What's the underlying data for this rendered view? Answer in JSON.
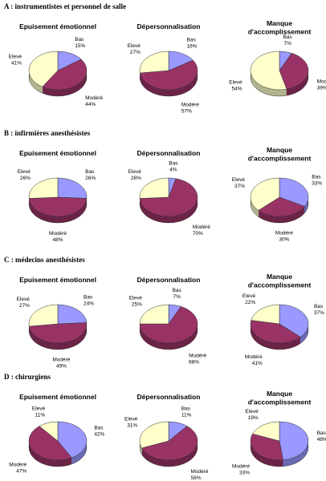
{
  "sections": [
    "A : instrumentistes et personnel de salle",
    "B : infirmières anesthésistes",
    "C : médecins anesthésistes",
    "D : chirurgiens"
  ],
  "chart_data": [
    {
      "type": "pie",
      "title": "Epuisement émotionnel",
      "categories": [
        "Bas",
        "Modéré",
        "Elevé"
      ],
      "values": [
        15,
        44,
        41
      ],
      "value_labels": [
        "15%",
        "44%",
        "41%"
      ],
      "colors": [
        "#9999ff",
        "#993366",
        "#ffffcc"
      ]
    },
    {
      "type": "pie",
      "title": "Dépersonnalisation",
      "categories": [
        "Bas",
        "Modéré",
        "Elevé"
      ],
      "values": [
        16,
        57,
        27
      ],
      "value_labels": [
        "16%",
        "57%",
        "27%"
      ],
      "colors": [
        "#9999ff",
        "#993366",
        "#ffffcc"
      ]
    },
    {
      "type": "pie",
      "title": "Manque\nd'accomplissement",
      "categories": [
        "Bas",
        "Modéré",
        "Elevé"
      ],
      "values": [
        7,
        39,
        54
      ],
      "value_labels": [
        "7%",
        "39%",
        "54%"
      ],
      "colors": [
        "#9999ff",
        "#993366",
        "#ffffcc"
      ]
    },
    {
      "type": "pie",
      "title": "Epuisement émotionnel",
      "categories": [
        "Bas",
        "Modéré",
        "Elevé"
      ],
      "values": [
        26,
        48,
        26
      ],
      "value_labels": [
        "26%",
        "48%",
        "26%"
      ],
      "colors": [
        "#9999ff",
        "#993366",
        "#ffffcc"
      ]
    },
    {
      "type": "pie",
      "title": "Dépersonnalisation",
      "categories": [
        "Bas",
        "Modéré",
        "Elevé"
      ],
      "values": [
        4,
        70,
        26
      ],
      "value_labels": [
        "4%",
        "70%",
        "26%"
      ],
      "colors": [
        "#9999ff",
        "#993366",
        "#ffffcc"
      ]
    },
    {
      "type": "pie",
      "title": "Manque\nd'accomplissement",
      "categories": [
        "Bas",
        "Modéré",
        "Elevé"
      ],
      "values": [
        33,
        30,
        37
      ],
      "value_labels": [
        "33%",
        "30%",
        "37%"
      ],
      "colors": [
        "#9999ff",
        "#993366",
        "#ffffcc"
      ]
    },
    {
      "type": "pie",
      "title": "Epuisement émotionnel",
      "categories": [
        "Bas",
        "Modéré",
        "Elevé"
      ],
      "values": [
        24,
        49,
        27
      ],
      "value_labels": [
        "24%",
        "49%",
        "27%"
      ],
      "colors": [
        "#9999ff",
        "#993366",
        "#ffffcc"
      ]
    },
    {
      "type": "pie",
      "title": "Dépersonnalisation",
      "categories": [
        "Bas",
        "Modéré",
        "Elevé"
      ],
      "values": [
        7,
        68,
        25
      ],
      "value_labels": [
        "7%",
        "68%",
        "25%"
      ],
      "colors": [
        "#9999ff",
        "#993366",
        "#ffffcc"
      ]
    },
    {
      "type": "pie",
      "title": "Manque\nd'accomplissement",
      "categories": [
        "Bas",
        "Modéré",
        "Elevé"
      ],
      "values": [
        37,
        41,
        22
      ],
      "value_labels": [
        "37%",
        "41%",
        "22%"
      ],
      "colors": [
        "#9999ff",
        "#993366",
        "#ffffcc"
      ]
    },
    {
      "type": "pie",
      "title": "Epuisement émotionnel",
      "categories": [
        "Bas",
        "Modéré",
        "Elevé"
      ],
      "values": [
        42,
        47,
        11
      ],
      "value_labels": [
        "42%",
        "47%",
        "11%"
      ],
      "colors": [
        "#9999ff",
        "#993366",
        "#ffffcc"
      ]
    },
    {
      "type": "pie",
      "title": "Dépersonnalisation",
      "categories": [
        "Bas",
        "Modéré",
        "Elevé"
      ],
      "values": [
        11,
        58,
        31
      ],
      "value_labels": [
        "11%",
        "58%",
        "31%"
      ],
      "colors": [
        "#9999ff",
        "#993366",
        "#ffffcc"
      ]
    },
    {
      "type": "pie",
      "title": "Manque\nd'accomplissement",
      "categories": [
        "Bas",
        "Modéré",
        "Elevé"
      ],
      "values": [
        48,
        33,
        19
      ],
      "value_labels": [
        "48%",
        "33%",
        "19%"
      ],
      "colors": [
        "#9999ff",
        "#993366",
        "#ffffcc"
      ]
    }
  ]
}
